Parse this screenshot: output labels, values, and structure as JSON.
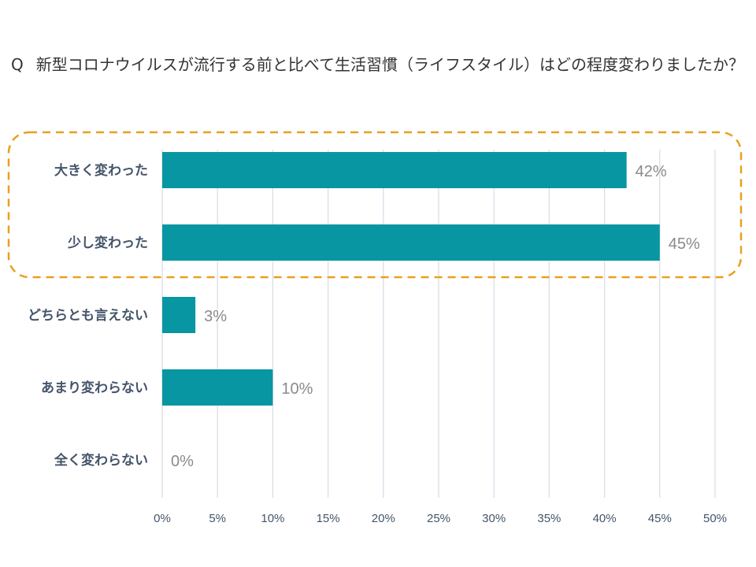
{
  "question": {
    "prefix": "Q",
    "text": "新型コロナウイルスが流行する前と比べて生活習慣（ライフスタイル）はどの程度変わりましたか？"
  },
  "chart_data": {
    "type": "bar",
    "orientation": "horizontal",
    "categories": [
      "大きく変わった",
      "少し変わった",
      "どちらとも言えない",
      "あまり変わらない",
      "全く変わらない"
    ],
    "values": [
      42,
      45,
      3,
      10,
      0
    ],
    "value_labels": [
      "42%",
      "45%",
      "3%",
      "10%",
      "0%"
    ],
    "xlim": [
      0,
      50
    ],
    "x_ticks": [
      0,
      5,
      10,
      15,
      20,
      25,
      30,
      35,
      40,
      45,
      50
    ],
    "x_tick_labels": [
      "0%",
      "5%",
      "10%",
      "15%",
      "20%",
      "25%",
      "30%",
      "35%",
      "40%",
      "45%",
      "50%"
    ],
    "grid": "vertical",
    "highlight": {
      "categories": [
        "大きく変わった",
        "少し変わった"
      ],
      "style": "dashed-rounded-box",
      "color": "#e8a020"
    },
    "colors": {
      "bar": "#0896a3",
      "grid": "#d9dee6",
      "category_text": "#44546a",
      "value_text": "#8a8a8a",
      "tick_text": "#44546a"
    }
  }
}
